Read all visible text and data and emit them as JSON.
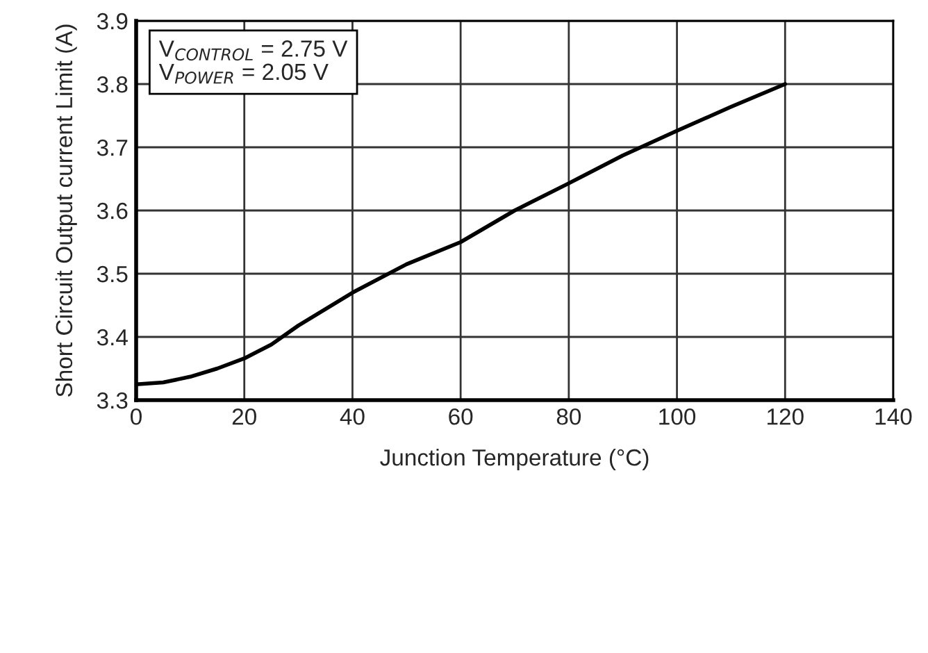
{
  "chart_data": {
    "type": "line",
    "xlabel": "Junction Temperature (°C)",
    "ylabel": "Short Circuit Output current Limit (A)",
    "x": [
      0,
      5,
      10,
      15,
      20,
      25,
      30,
      40,
      50,
      60,
      70,
      80,
      90,
      100,
      110,
      120
    ],
    "series": [
      {
        "color": "#000000",
        "values": [
          3.325,
          3.328,
          3.337,
          3.35,
          3.366,
          3.388,
          3.418,
          3.47,
          3.515,
          3.55,
          3.6,
          3.643,
          3.687,
          3.726,
          3.764,
          3.8
        ]
      }
    ],
    "xlim": [
      0,
      140
    ],
    "xticks": [
      0,
      20,
      40,
      60,
      80,
      100,
      120,
      140
    ],
    "ylim": [
      3.3,
      3.9
    ],
    "yticks": [
      3.3,
      3.4,
      3.5,
      3.6,
      3.7,
      3.8,
      3.9
    ],
    "grid": true,
    "marker": "none",
    "line_style": "solid",
    "annotations": [
      "V$_{CONTROL}$ = 2.75 V\nV$_{POWER}$ = 2.05 V"
    ]
  }
}
